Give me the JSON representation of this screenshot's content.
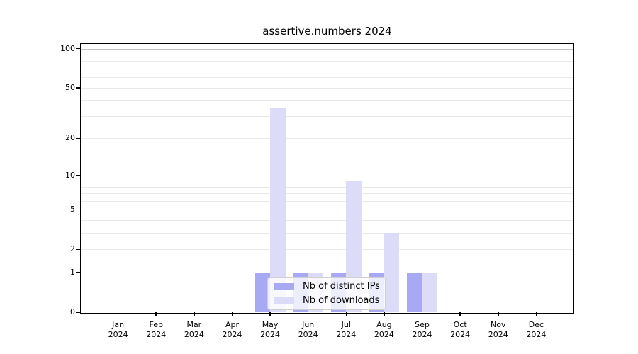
{
  "chart_data": {
    "type": "bar",
    "title": "assertive.numbers 2024",
    "categories": [
      "Jan 2024",
      "Feb 2024",
      "Mar 2024",
      "Apr 2024",
      "May 2024",
      "Jun 2024",
      "Jul 2024",
      "Aug 2024",
      "Sep 2024",
      "Oct 2024",
      "Nov 2024",
      "Dec 2024"
    ],
    "month_labels": [
      {
        "month": "Jan",
        "year": "2024"
      },
      {
        "month": "Feb",
        "year": "2024"
      },
      {
        "month": "Mar",
        "year": "2024"
      },
      {
        "month": "Apr",
        "year": "2024"
      },
      {
        "month": "May",
        "year": "2024"
      },
      {
        "month": "Jun",
        "year": "2024"
      },
      {
        "month": "Jul",
        "year": "2024"
      },
      {
        "month": "Aug",
        "year": "2024"
      },
      {
        "month": "Sep",
        "year": "2024"
      },
      {
        "month": "Oct",
        "year": "2024"
      },
      {
        "month": "Nov",
        "year": "2024"
      },
      {
        "month": "Dec",
        "year": "2024"
      }
    ],
    "series": [
      {
        "name": "Nb of distinct IPs",
        "color": "#a7aaf2",
        "values": [
          0,
          0,
          0,
          0,
          1,
          1,
          1,
          1,
          1,
          0,
          0,
          0
        ]
      },
      {
        "name": "Nb of downloads",
        "color": "#dcdcf8",
        "values": [
          0,
          0,
          0,
          0,
          35,
          1,
          9,
          3,
          1,
          0,
          0,
          0
        ]
      }
    ],
    "xlabel": "",
    "ylabel": "",
    "yscale": "log1p",
    "yticks": [
      0,
      1,
      2,
      5,
      10,
      20,
      50,
      100
    ],
    "minor_gridlines": [
      2,
      3,
      4,
      5,
      6,
      7,
      8,
      9,
      20,
      30,
      40,
      50,
      60,
      70,
      80,
      90
    ],
    "major_gridlines": [
      1,
      10,
      100
    ],
    "ylim": [
      0,
      110
    ],
    "grid": true,
    "legend_position": "bottom-center",
    "colors": {
      "major_grid": "#c3c3c3",
      "minor_grid": "#e9e9e9",
      "frame": "#000000",
      "background": "#ffffff",
      "text": "#000000"
    }
  }
}
